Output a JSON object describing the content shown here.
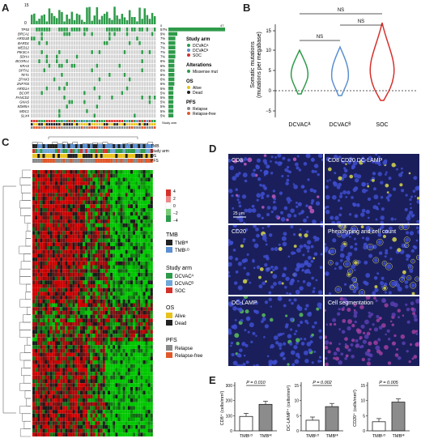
{
  "panels": {
    "A": "A",
    "B": "B",
    "C": "C",
    "D": "D",
    "E": "E"
  },
  "panelA": {
    "top_axis_max": "15",
    "top_axis_min": "0",
    "right_axis_left": "0",
    "right_axis_right": "47",
    "genes": [
      "TP53",
      "BRCA1",
      "ARID1B",
      "BARD1",
      "MED12",
      "PIK3CA",
      "SDHA",
      "BCORL1",
      "KRAS",
      "SPTA1",
      "TET1",
      "ZFHX3",
      "ZNF703",
      "ARID1A",
      "BCOR",
      "FANCD2",
      "GNAS",
      "KDM5A",
      "MDC1",
      "SLX4"
    ],
    "percents": [
      "57%",
      "9%",
      "7%",
      "7%",
      "7%",
      "7%",
      "7%",
      "6%",
      "6%",
      "6%",
      "6%",
      "6%",
      "6%",
      "5%",
      "5%",
      "5%",
      "5%",
      "5%",
      "5%",
      "5%"
    ],
    "legend": {
      "study_arm_title": "Study arm",
      "study_arm": [
        "DCVACᴬ",
        "DCVACᴮ",
        "SOC"
      ],
      "alterations_title": "Alterations",
      "alterations": [
        "Missense mut"
      ],
      "os_title": "OS",
      "os": [
        "Alive",
        "Dead"
      ],
      "pfs_title": "PFS",
      "pfs": [
        "Relapse",
        "Relapse-free"
      ]
    },
    "row_footer": "Study arm"
  },
  "panelB": {
    "ylabel": "Somatic mutations\n(mutations per megabase)",
    "yticks": [
      "15",
      "10",
      "5",
      "0",
      "−5"
    ],
    "categories": [
      "DCVACᴬ",
      "DCVACᴮ",
      "SOC"
    ],
    "ns": [
      "NS",
      "NS",
      "NS"
    ]
  },
  "panelC": {
    "legend_tmb_title": "TMB",
    "legend_tmb": [
      "TMBᴴᴵ",
      "TMBᴸᴼ"
    ],
    "legend_arm_title": "Study arm",
    "legend_arm": [
      "DCVACᴬ",
      "DCVACᴮ",
      "SOC"
    ],
    "legend_os_title": "OS",
    "legend_os": [
      "Alive",
      "Dead"
    ],
    "legend_pfs_title": "PFS",
    "legend_pfs": [
      "Relapse",
      "Relapse-free"
    ],
    "scale": [
      "4",
      "2",
      "0",
      "−2",
      "−4"
    ],
    "track_labels": [
      "TMB",
      "Study arm",
      "OS",
      "PFS"
    ]
  },
  "panelD": {
    "tiles": [
      "CD8",
      "CD8  CD20  DC-LAMP",
      "CD20",
      "Phenotyping and cell count",
      "DC-LAMP",
      "Cell segmentation"
    ],
    "scale_bar": "25 μm"
  },
  "chart_data": [
    {
      "type": "bar",
      "categories": [
        "TMBᴸᴼ",
        "TMBᴴᴵ"
      ],
      "values": [
        95,
        175
      ],
      "ylabel": "CD8⁺ (cells/mm²)",
      "yticks": [
        "0",
        "100",
        "200",
        "300"
      ],
      "ylim": [
        0,
        300
      ],
      "annotation": "P = 0.010"
    },
    {
      "type": "bar",
      "categories": [
        "TMBᴸᴼ",
        "TMBᴴᴵ"
      ],
      "values": [
        3.5,
        8
      ],
      "ylabel": "DC-LAMP⁺ (cells/mm²)",
      "yticks": [
        "0",
        "5",
        "10",
        "15"
      ],
      "ylim": [
        0,
        15
      ],
      "annotation": "P = 0.002"
    },
    {
      "type": "bar",
      "categories": [
        "TMBᴸᴼ",
        "TMBᴴᴵ"
      ],
      "values": [
        3,
        9.5
      ],
      "ylabel": "CD20⁺ (cells/mm²)",
      "yticks": [
        "0",
        "5",
        "10",
        "15"
      ],
      "ylim": [
        0,
        15
      ],
      "annotation": "P = 0.005"
    }
  ]
}
